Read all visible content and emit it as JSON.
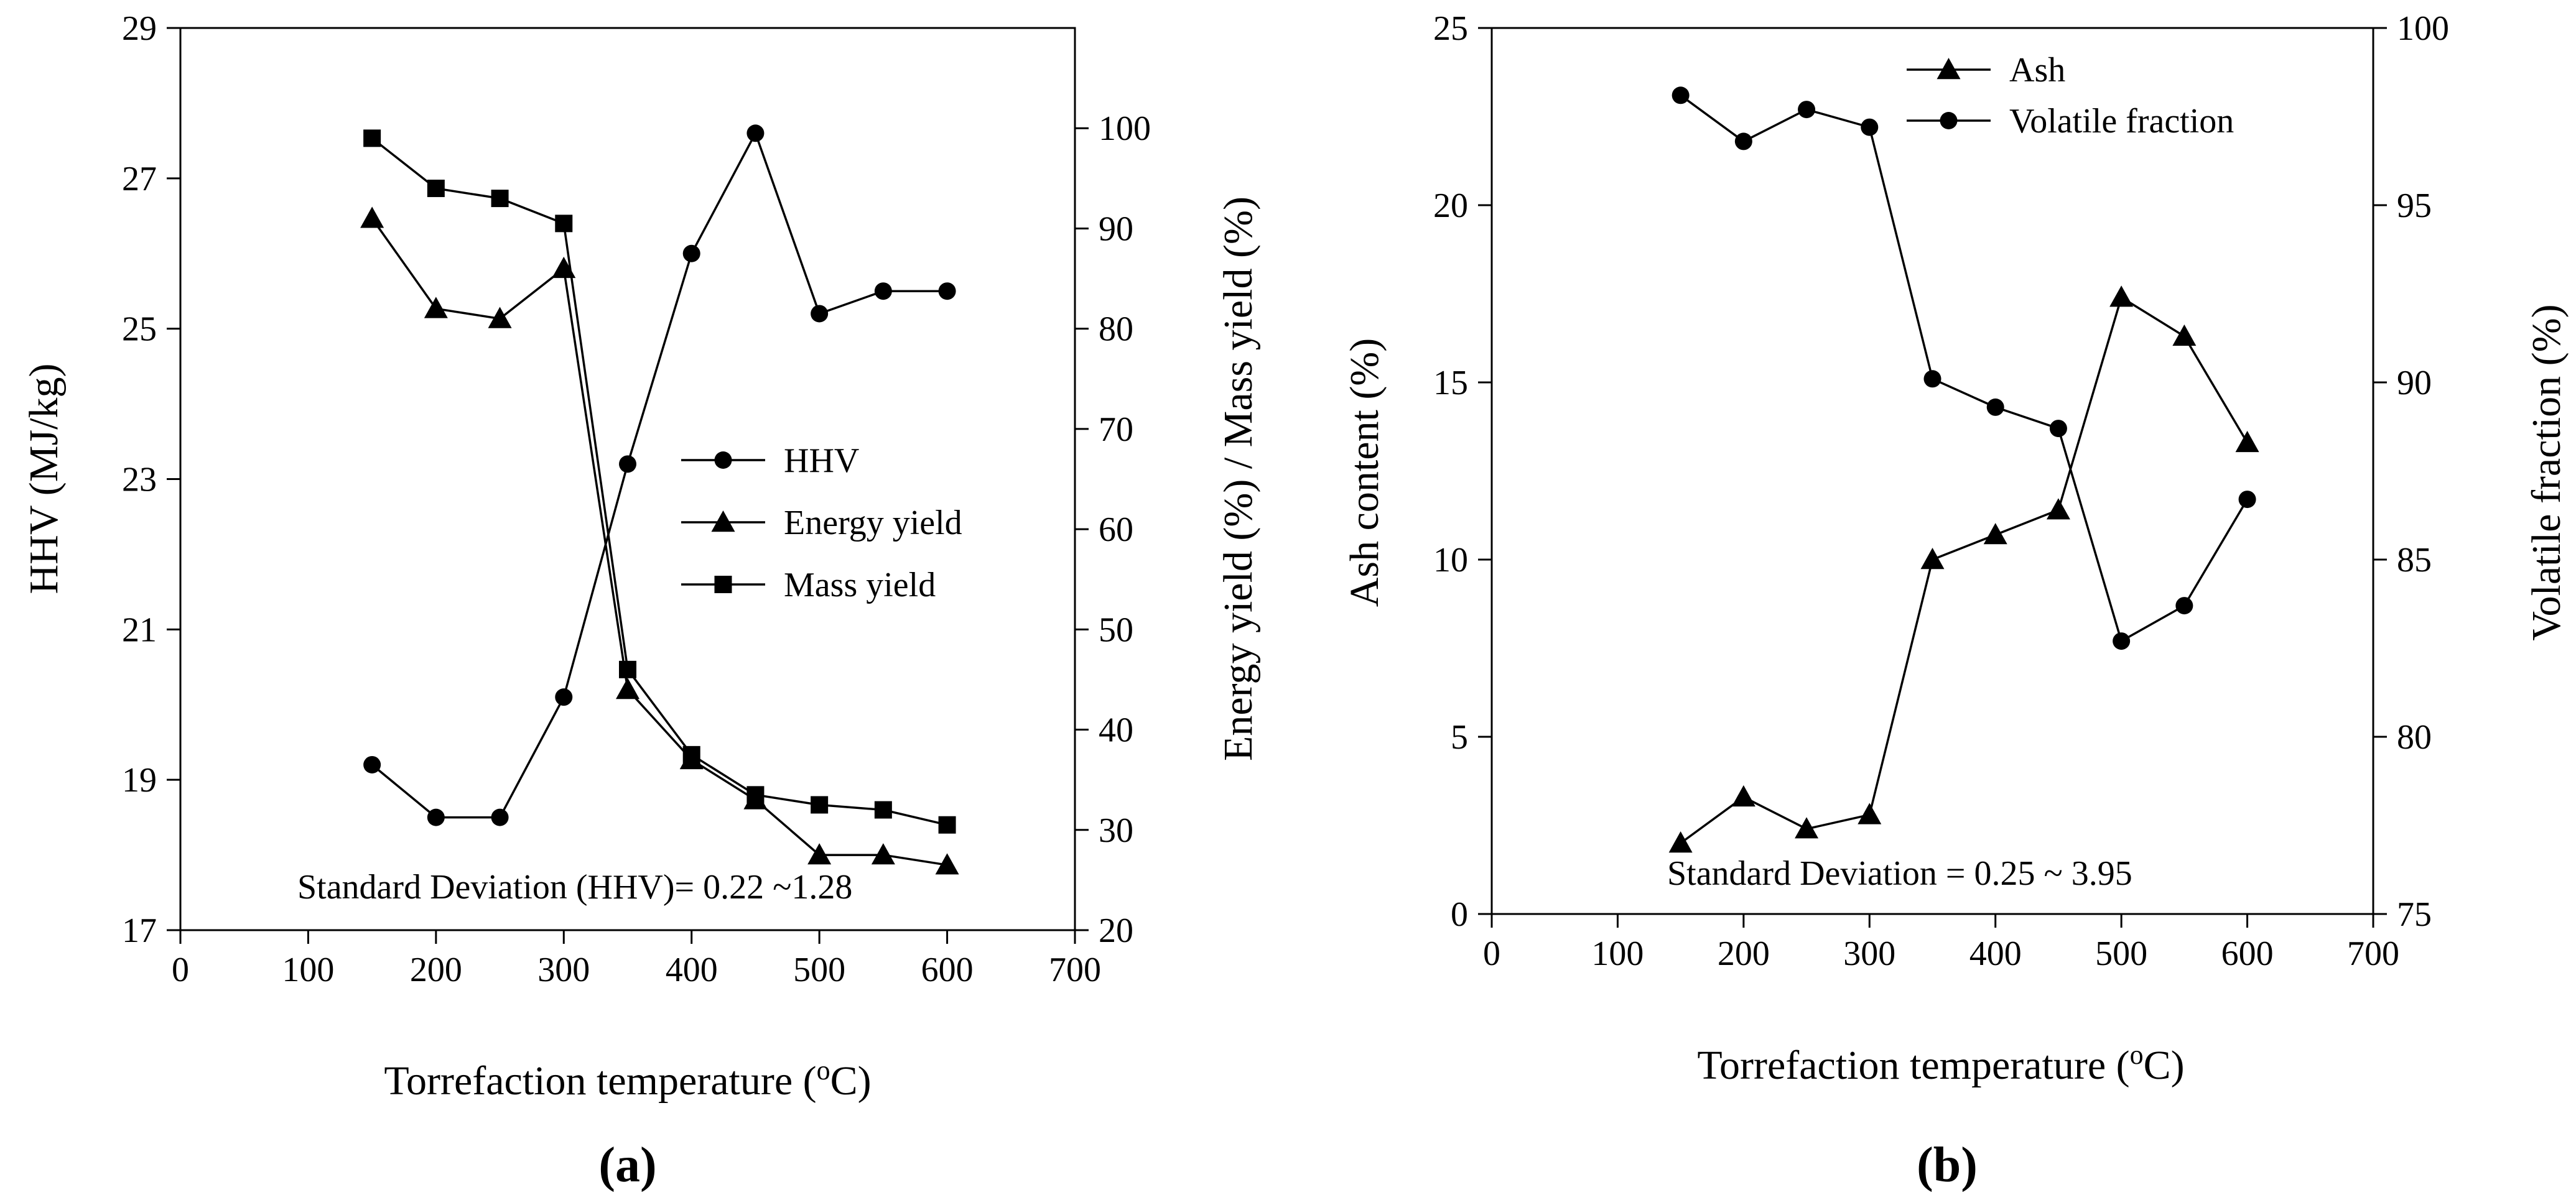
{
  "chart_data": [
    {
      "panel": "a",
      "type": "line",
      "panel_label": "(a)",
      "xlabel": "Torrefaction temperature (°C)",
      "xlabel_pre": "Torrefaction temperature (",
      "xlabel_sup": "o",
      "xlabel_post": "C)",
      "xlim": [
        0,
        700
      ],
      "xticks": [
        0,
        100,
        200,
        300,
        400,
        500,
        600,
        700
      ],
      "ylabel_left": "HHV (MJ/kg)",
      "ylim_left": [
        17,
        29
      ],
      "yticks_left": [
        17,
        19,
        21,
        23,
        25,
        27,
        29
      ],
      "ylabel_right": "Energy yield (%) / Mass yield (%)",
      "ylim_right": [
        20,
        110
      ],
      "yticks_right": [
        20,
        30,
        40,
        50,
        60,
        70,
        80,
        90,
        100
      ],
      "x": [
        150,
        200,
        250,
        300,
        350,
        400,
        450,
        500,
        550,
        600
      ],
      "series": [
        {
          "name": "HHV",
          "axis": "left",
          "marker": "circle",
          "values": [
            19.2,
            18.5,
            18.5,
            20.1,
            23.2,
            26.0,
            27.6,
            25.2,
            25.5,
            25.5
          ]
        },
        {
          "name": "Energy yield",
          "axis": "right",
          "marker": "triangle",
          "values": [
            91,
            82,
            81,
            86,
            44,
            37,
            33,
            27.5,
            27.5,
            26.5
          ]
        },
        {
          "name": "Mass yield",
          "axis": "right",
          "marker": "square",
          "values": [
            99,
            94,
            93,
            90.5,
            46,
            37.5,
            33.5,
            32.5,
            32,
            30.5
          ]
        }
      ],
      "legend_position": "center-right",
      "annotation": "Standard Deviation (HHV)= 0.22 ~1.28"
    },
    {
      "panel": "b",
      "type": "line",
      "panel_label": "(b)",
      "xlabel": "Torrefaction temperature (°C)",
      "xlabel_pre": "Torrefaction temperature (",
      "xlabel_sup": "o",
      "xlabel_post": "C)",
      "xlim": [
        0,
        700
      ],
      "xticks": [
        0,
        100,
        200,
        300,
        400,
        500,
        600,
        700
      ],
      "ylabel_left": "Ash content (%)",
      "ylim_left": [
        0,
        25
      ],
      "yticks_left": [
        0,
        5,
        10,
        15,
        20,
        25
      ],
      "ylabel_right": "Volatile fraction (%)",
      "ylim_right": [
        75,
        100
      ],
      "yticks_right": [
        75,
        80,
        85,
        90,
        95,
        100
      ],
      "x": [
        150,
        200,
        250,
        300,
        350,
        400,
        450,
        500,
        550,
        600
      ],
      "series": [
        {
          "name": "Ash",
          "axis": "left",
          "marker": "triangle",
          "values": [
            2.0,
            3.3,
            2.4,
            2.8,
            10.0,
            10.7,
            11.4,
            17.4,
            16.3,
            13.3
          ]
        },
        {
          "name": "Volatile fraction",
          "axis": "right",
          "marker": "circle",
          "values": [
            98.1,
            96.8,
            97.7,
            97.2,
            90.1,
            89.3,
            88.7,
            82.7,
            83.7,
            86.7
          ]
        }
      ],
      "legend_position": "top-center",
      "annotation": "Standard Deviation = 0.25 ~ 3.95"
    }
  ]
}
